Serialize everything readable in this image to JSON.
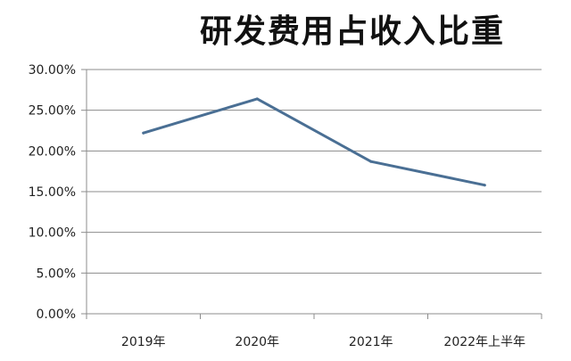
{
  "chart_data": {
    "type": "line",
    "title": "研发费用占收入比重",
    "xlabel": "",
    "ylabel": "",
    "categories": [
      "2019年",
      "2020年",
      "2021年",
      "2022年上半年"
    ],
    "series": [
      {
        "values": [
          22.2,
          26.4,
          18.7,
          15.8
        ]
      }
    ],
    "ylim": [
      0,
      30
    ],
    "yticks": [
      "0.00%",
      "5.00%",
      "10.00%",
      "15.00%",
      "20.00%",
      "25.00%",
      "30.00%"
    ],
    "grid": true,
    "legend": "none",
    "line_color": "#4a6f94",
    "grid_color": "#8c8c8c"
  }
}
